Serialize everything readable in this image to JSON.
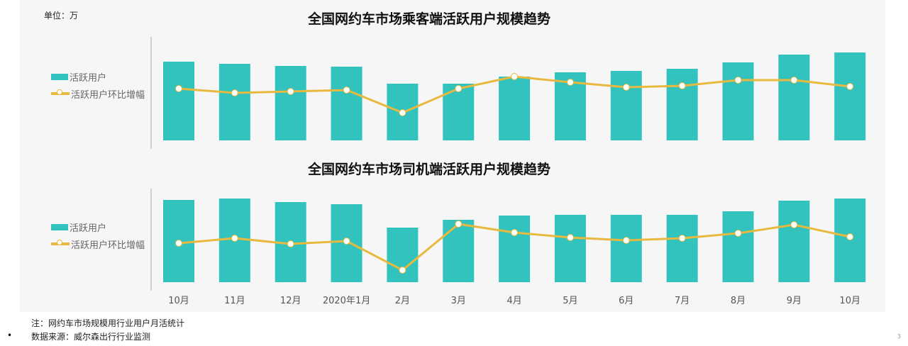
{
  "unit_label": "单位：万",
  "notes": [
    "注：网约车市场规模用行业用户月活统计",
    "数据来源：威尔森出行行业监测"
  ],
  "page_number": "3",
  "colors": {
    "bar": "#32c3bf",
    "line": "#e8b93e"
  },
  "chart_data": [
    {
      "type": "bar+line",
      "title": "全国网约车市场乘客端活跃用户规模趋势",
      "categories": [
        "10月",
        "11月",
        "12月",
        "2020年1月",
        "2月",
        "3月",
        "4月",
        "5月",
        "6月",
        "7月",
        "8月",
        "9月",
        "10月"
      ],
      "series": [
        {
          "name": "活跃用户",
          "type": "bar",
          "values": [
            111,
            108,
            105,
            104,
            80,
            80,
            90,
            96,
            98,
            101,
            110,
            121,
            124
          ]
        },
        {
          "name": "活跃用户环比增幅",
          "type": "line",
          "values": [
            73,
            67,
            69,
            71,
            39,
            73,
            90,
            82,
            75,
            77,
            85,
            85,
            76
          ]
        }
      ],
      "legend": "left",
      "grid": false,
      "yaxis_ticks": false
    },
    {
      "type": "bar+line",
      "title": "全国网约车市场司机端活跃用户规模趋势",
      "categories": [
        "10月",
        "11月",
        "12月",
        "2020年1月",
        "2月",
        "3月",
        "4月",
        "5月",
        "6月",
        "7月",
        "8月",
        "9月",
        "10月"
      ],
      "series": [
        {
          "name": "活跃用户",
          "type": "bar",
          "values": [
            116,
            118,
            113,
            110,
            77,
            88,
            94,
            95,
            95,
            95,
            100,
            115,
            118
          ]
        },
        {
          "name": "活跃用户环比增幅",
          "type": "line",
          "values": [
            55,
            62,
            54,
            58,
            17,
            82,
            70,
            63,
            59,
            62,
            69,
            81,
            64
          ]
        }
      ],
      "legend": "left",
      "grid": false,
      "yaxis_ticks": false
    }
  ]
}
